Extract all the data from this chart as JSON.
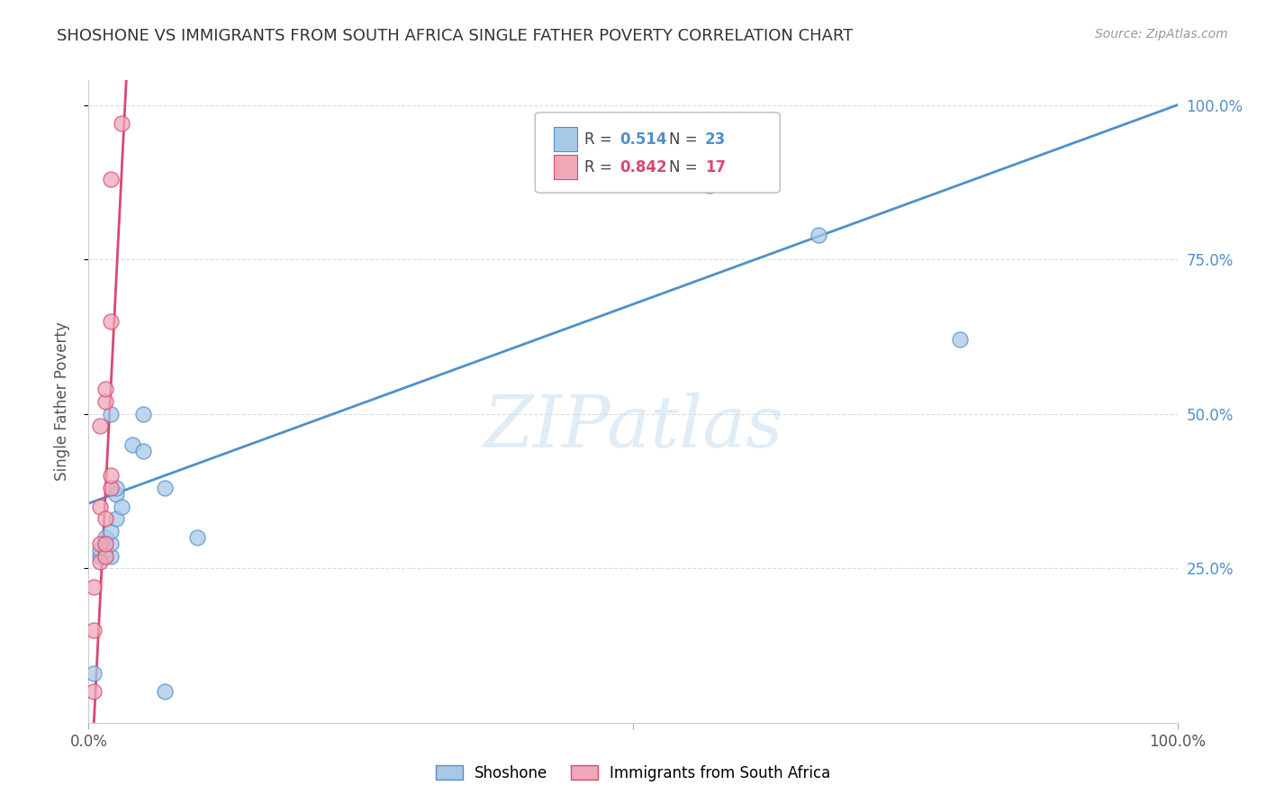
{
  "title": "SHOSHONE VS IMMIGRANTS FROM SOUTH AFRICA SINGLE FATHER POVERTY CORRELATION CHART",
  "source": "Source: ZipAtlas.com",
  "ylabel": "Single Father Poverty",
  "watermark": "ZIPatlas",
  "blue_color": "#A8C8E8",
  "pink_color": "#F0A8B8",
  "blue_line_color": "#5090C8",
  "pink_line_color": "#D84870",
  "blue_scatter_x": [
    0.005,
    0.01,
    0.01,
    0.015,
    0.015,
    0.015,
    0.02,
    0.02,
    0.02,
    0.02,
    0.025,
    0.025,
    0.025,
    0.03,
    0.04,
    0.05,
    0.05,
    0.07,
    0.1,
    0.07,
    0.57,
    0.67,
    0.8
  ],
  "blue_scatter_y": [
    0.08,
    0.27,
    0.28,
    0.3,
    0.27,
    0.28,
    0.27,
    0.29,
    0.31,
    0.5,
    0.37,
    0.38,
    0.33,
    0.35,
    0.45,
    0.44,
    0.5,
    0.38,
    0.3,
    0.05,
    0.87,
    0.79,
    0.62
  ],
  "pink_scatter_x": [
    0.005,
    0.005,
    0.005,
    0.01,
    0.01,
    0.01,
    0.01,
    0.015,
    0.015,
    0.015,
    0.015,
    0.015,
    0.02,
    0.02,
    0.02,
    0.02,
    0.03
  ],
  "pink_scatter_y": [
    0.05,
    0.15,
    0.22,
    0.26,
    0.29,
    0.35,
    0.48,
    0.52,
    0.54,
    0.27,
    0.29,
    0.33,
    0.38,
    0.4,
    0.65,
    0.88,
    0.97
  ],
  "blue_line_x0": 0.0,
  "blue_line_y0": 0.355,
  "blue_line_x1": 1.0,
  "blue_line_y1": 1.0,
  "pink_slope": 35.0,
  "pink_intercept": -0.17,
  "xlim": [
    0.0,
    1.0
  ],
  "ylim": [
    0.0,
    1.04
  ],
  "yticks": [
    0.25,
    0.5,
    0.75,
    1.0
  ],
  "ytick_labels": [
    "25.0%",
    "50.0%",
    "75.0%",
    "100.0%"
  ],
  "xticks_major": [
    0.0,
    0.5,
    1.0
  ],
  "xtick_labels": [
    "0.0%",
    "",
    "100.0%"
  ],
  "grid_color": "#DDDDDD",
  "title_color": "#333333",
  "source_color": "#999999",
  "tick_label_color": "#5090C8",
  "legend_r_blue": "0.514",
  "legend_n_blue": "23",
  "legend_r_pink": "0.842",
  "legend_n_pink": "17",
  "legend_label_blue": "Shoshone",
  "legend_label_pink": "Immigrants from South Africa"
}
